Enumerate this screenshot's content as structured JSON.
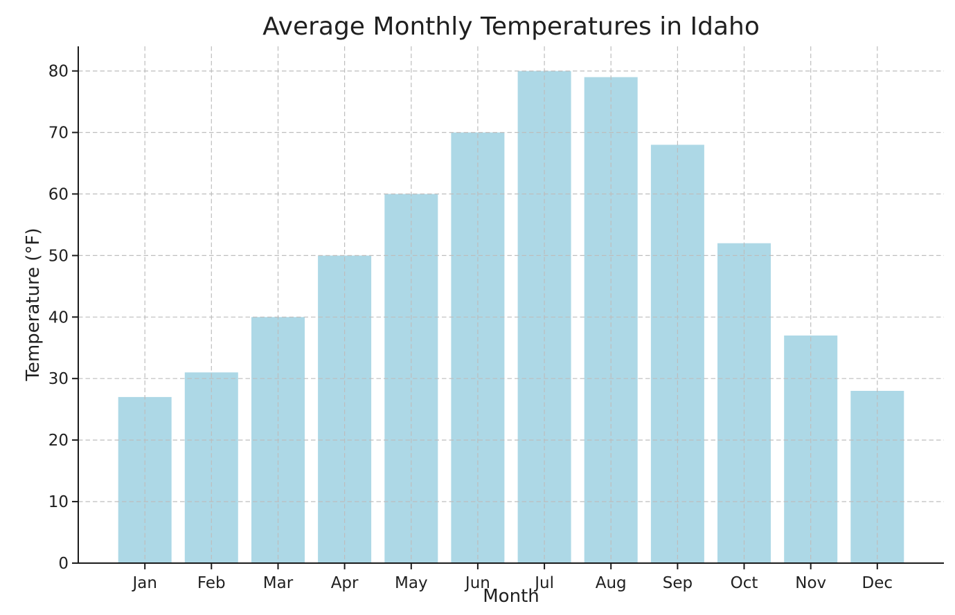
{
  "chart_data": {
    "type": "bar",
    "title": "Average Monthly Temperatures in Idaho",
    "xlabel": "Month",
    "ylabel": "Temperature (°F)",
    "categories": [
      "Jan",
      "Feb",
      "Mar",
      "Apr",
      "May",
      "Jun",
      "Jul",
      "Aug",
      "Sep",
      "Oct",
      "Nov",
      "Dec"
    ],
    "values": [
      27,
      31,
      40,
      50,
      60,
      70,
      80,
      79,
      68,
      52,
      37,
      28
    ],
    "ylim": [
      0,
      84
    ],
    "yticks": [
      0,
      10,
      20,
      30,
      40,
      50,
      60,
      70,
      80
    ],
    "grid": true,
    "grid_style": "dashed",
    "grid_over_bars": true,
    "legend": "none",
    "colors": {
      "bar_fill": "#ADD8E6",
      "grid": "#bdbdbd",
      "axis": "#1a1a1a",
      "text": "#1f1f1f",
      "background": "#ffffff"
    }
  }
}
